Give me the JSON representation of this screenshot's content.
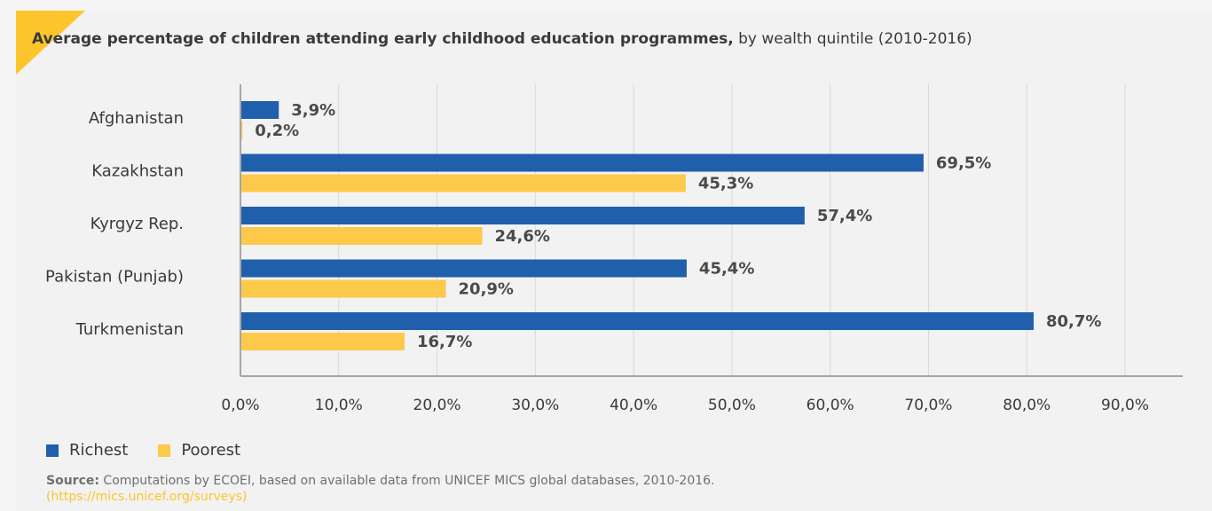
{
  "title": {
    "bold": "Average percentage of children attending early childhood education programmes,",
    "normal": "by wealth quintile (2010-2016)"
  },
  "colors": {
    "richest": "#1f5fac",
    "poorest": "#fcc94a",
    "accent": "#fcc52b"
  },
  "legend": {
    "richest": "Richest",
    "poorest": "Poorest"
  },
  "source": {
    "label": "Source:",
    "text": "Computations by ECOEI, based on available data from UNICEF MICS global databases, 2010-2016.",
    "url": "(https://mics.unicef.org/surveys)"
  },
  "chart_data": {
    "type": "bar",
    "orientation": "horizontal",
    "categories": [
      "Afghanistan",
      "Kazakhstan",
      "Kyrgyz Rep.",
      "Pakistan (Punjab)",
      "Turkmenistan"
    ],
    "series": [
      {
        "name": "Richest",
        "values": [
          3.9,
          69.5,
          57.4,
          45.4,
          80.7
        ],
        "labels": [
          "3,9%",
          "69,5%",
          "57,4%",
          "45,4%",
          "80,7%"
        ]
      },
      {
        "name": "Poorest",
        "values": [
          0.2,
          45.3,
          24.6,
          20.9,
          16.7
        ],
        "labels": [
          "0,2%",
          "45,3%",
          "24,6%",
          "20,9%",
          "16,7%"
        ]
      }
    ],
    "xlim": [
      0,
      90
    ],
    "xticks": [
      0,
      10,
      20,
      30,
      40,
      50,
      60,
      70,
      80,
      90
    ],
    "xtick_labels": [
      "0,0%",
      "10,0%",
      "20,0%",
      "30,0%",
      "40,0%",
      "50,0%",
      "60,0%",
      "70,0%",
      "80,0%",
      "90,0%"
    ],
    "grid": true,
    "legend_position": "bottom-left"
  }
}
